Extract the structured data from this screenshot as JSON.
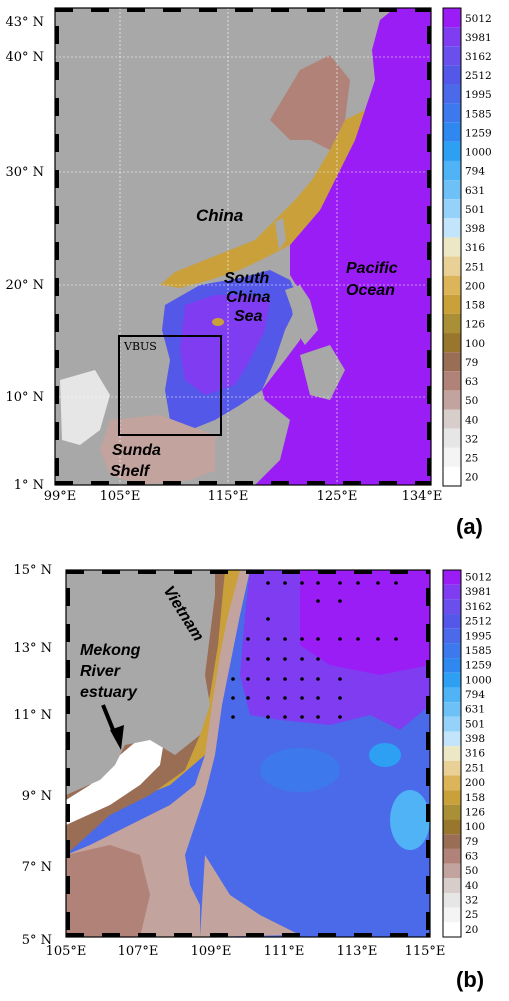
{
  "colorbar": {
    "levels": [
      "5012",
      "3981",
      "3162",
      "2512",
      "1995",
      "1585",
      "1259",
      "1000",
      "794",
      "631",
      "501",
      "398",
      "316",
      "251",
      "200",
      "158",
      "126",
      "100",
      "79",
      "63",
      "50",
      "40",
      "32",
      "25",
      "20"
    ],
    "colors": [
      "#9a1df5",
      "#7f3cf0",
      "#6a4fec",
      "#5458e8",
      "#4a6ae9",
      "#3d79ec",
      "#2f88ef",
      "#2ea0f3",
      "#4fb3f6",
      "#6ec1f7",
      "#95d2f9",
      "#c2e5fb",
      "#ece7c4",
      "#e9d096",
      "#dcb55b",
      "#c9a03a",
      "#a98f35",
      "#98762b",
      "#9a6d55",
      "#b08278",
      "#c3a39d",
      "#d7cdcb",
      "#e6e6e6",
      "#f4f4f4",
      "#ffffff"
    ]
  },
  "panel_a": {
    "letter": "(a)",
    "lat_ticks": [
      "43",
      "40",
      "30",
      "20",
      "10",
      "1"
    ],
    "lon_ticks": [
      "99",
      "105",
      "115",
      "125",
      "134"
    ],
    "lat_suffix": "N",
    "lon_suffix": "E",
    "labels": {
      "china": "China",
      "scs_1": "South",
      "scs_2": "China",
      "scs_3": "Sea",
      "pacific_1": "Pacific",
      "pacific_2": "Ocean",
      "vbus": "VBUS",
      "sunda_1": "Sunda",
      "sunda_2": "Shelf"
    }
  },
  "panel_b": {
    "letter": "(b)",
    "lat_ticks": [
      "15",
      "13",
      "11",
      "9",
      "7",
      "5"
    ],
    "lon_ticks": [
      "105",
      "107",
      "109",
      "111",
      "113",
      "115"
    ],
    "lat_suffix": "N",
    "lon_suffix": "E",
    "labels": {
      "vietnam": "Vietnam",
      "mekong_1": "Mekong",
      "mekong_2": "River",
      "mekong_3": "estuary"
    }
  }
}
